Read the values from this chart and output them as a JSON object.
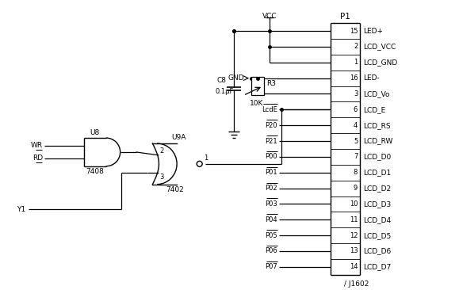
{
  "figsize": [
    5.79,
    3.66
  ],
  "dpi": 100,
  "bg_color": "#ffffff",
  "line_color": "#000000",
  "connector_pins": [
    {
      "num": 15,
      "label": "LED+"
    },
    {
      "num": 2,
      "label": "LCD_VCC"
    },
    {
      "num": 1,
      "label": "LCD_GND"
    },
    {
      "num": 16,
      "label": "LED-"
    },
    {
      "num": 3,
      "label": "LCD_Vo"
    },
    {
      "num": 6,
      "label": "LCD_E"
    },
    {
      "num": 4,
      "label": "LCD_RS"
    },
    {
      "num": 5,
      "label": "LCD_RW"
    },
    {
      "num": 7,
      "label": "LCD_D0"
    },
    {
      "num": 8,
      "label": "LCD_D1"
    },
    {
      "num": 9,
      "label": "LCD_D2"
    },
    {
      "num": 10,
      "label": "LCD_D3"
    },
    {
      "num": 11,
      "label": "LCD_D4"
    },
    {
      "num": 12,
      "label": "LCD_D5"
    },
    {
      "num": 13,
      "label": "LCD_D6"
    },
    {
      "num": 14,
      "label": "LCD_D7"
    }
  ],
  "wire_labels": [
    {
      "label": "LcdE",
      "pin": 6
    },
    {
      "label": "P20",
      "pin": 4
    },
    {
      "label": "P21",
      "pin": 5
    },
    {
      "label": "P00",
      "pin": 7
    },
    {
      "label": "P01",
      "pin": 8
    },
    {
      "label": "P02",
      "pin": 9
    },
    {
      "label": "P03",
      "pin": 10
    },
    {
      "label": "P04",
      "pin": 11
    },
    {
      "label": "P05",
      "pin": 12
    },
    {
      "label": "P06",
      "pin": 13
    },
    {
      "label": "P07",
      "pin": 14
    }
  ]
}
